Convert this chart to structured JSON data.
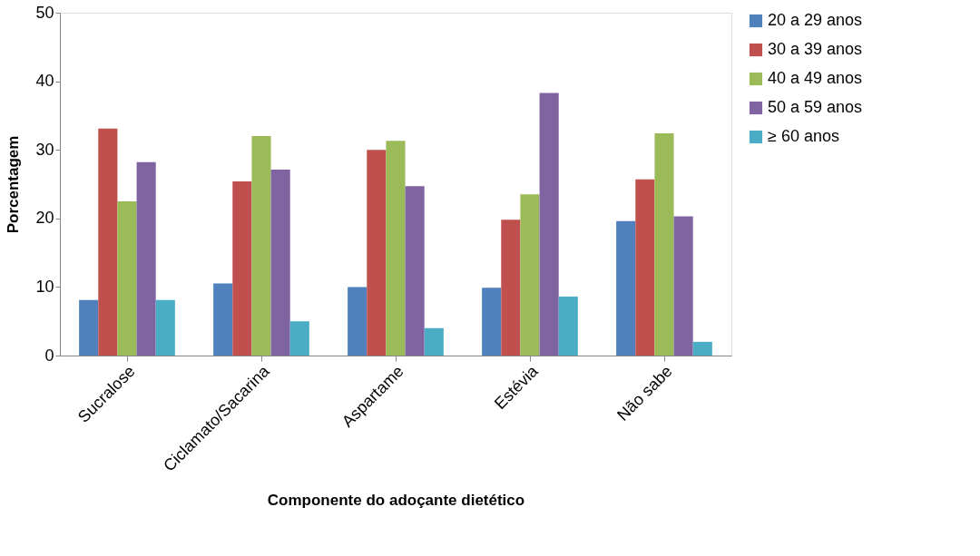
{
  "chart_data": {
    "type": "bar",
    "xlabel": "Componente do adoçante dietético",
    "ylabel": "Porcentagem",
    "categories": [
      "Sucralose",
      "Ciclamato/Sacarina",
      "Aspartame",
      "Estévia",
      "Não sabe"
    ],
    "series": [
      {
        "name": "20 a 29 anos",
        "color": "#4f81bd",
        "values": [
          8.1,
          10.5,
          10,
          9.9,
          19.6
        ]
      },
      {
        "name": "30 a 39 anos",
        "color": "#c0504d",
        "values": [
          33.1,
          25.4,
          30,
          19.8,
          25.7
        ]
      },
      {
        "name": "40 a 49 anos",
        "color": "#9bbb59",
        "values": [
          22.5,
          32,
          31.3,
          23.5,
          32.4
        ]
      },
      {
        "name": "50 a 59 anos",
        "color": "#8064a2",
        "values": [
          28.2,
          27.1,
          24.7,
          38.3,
          20.3
        ]
      },
      {
        "name": "≥ 60 anos",
        "color": "#4bacc6",
        "values": [
          8.1,
          5,
          4,
          8.6,
          2
        ]
      }
    ],
    "ylim": [
      0,
      50
    ],
    "yticks": [
      0,
      10,
      20,
      30,
      40,
      50
    ],
    "grid": false,
    "legend": "right"
  }
}
